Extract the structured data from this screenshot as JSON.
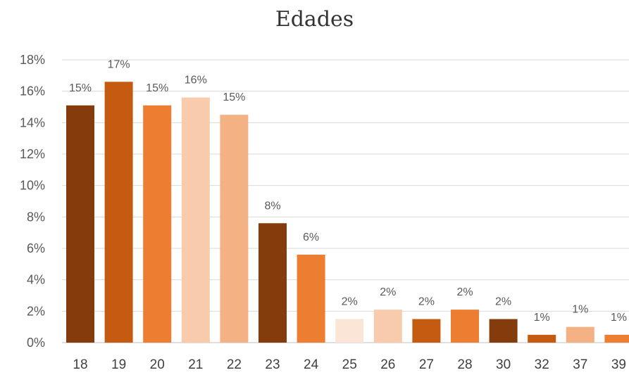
{
  "chart_data": {
    "type": "bar",
    "title": "Edades",
    "categories": [
      "18",
      "19",
      "20",
      "21",
      "22",
      "23",
      "24",
      "25",
      "26",
      "27",
      "28",
      "30",
      "32",
      "37",
      "39"
    ],
    "values": [
      15.1,
      16.6,
      15.1,
      15.6,
      14.5,
      7.6,
      5.6,
      1.5,
      2.1,
      1.5,
      2.1,
      1.5,
      0.5,
      1.0,
      0.5
    ],
    "data_labels": [
      "15%",
      "17%",
      "15%",
      "16%",
      "15%",
      "8%",
      "6%",
      "2%",
      "2%",
      "2%",
      "2%",
      "2%",
      "1%",
      "1%",
      "1%"
    ],
    "bar_colors": [
      "#843C0C",
      "#C55A11",
      "#ED7D31",
      "#F8CBAD",
      "#F4B183",
      "#843C0C",
      "#ED7D31",
      "#FBE5D6",
      "#F8CBAD",
      "#C55A11",
      "#ED7D31",
      "#843C0C",
      "#C55A11",
      "#F4B183",
      "#ED7D31"
    ],
    "y_ticks": [
      "0%",
      "2%",
      "4%",
      "6%",
      "8%",
      "10%",
      "12%",
      "14%",
      "16%",
      "18%"
    ],
    "ylim": [
      0,
      18
    ],
    "grid": true,
    "xlabel": "",
    "ylabel": ""
  }
}
